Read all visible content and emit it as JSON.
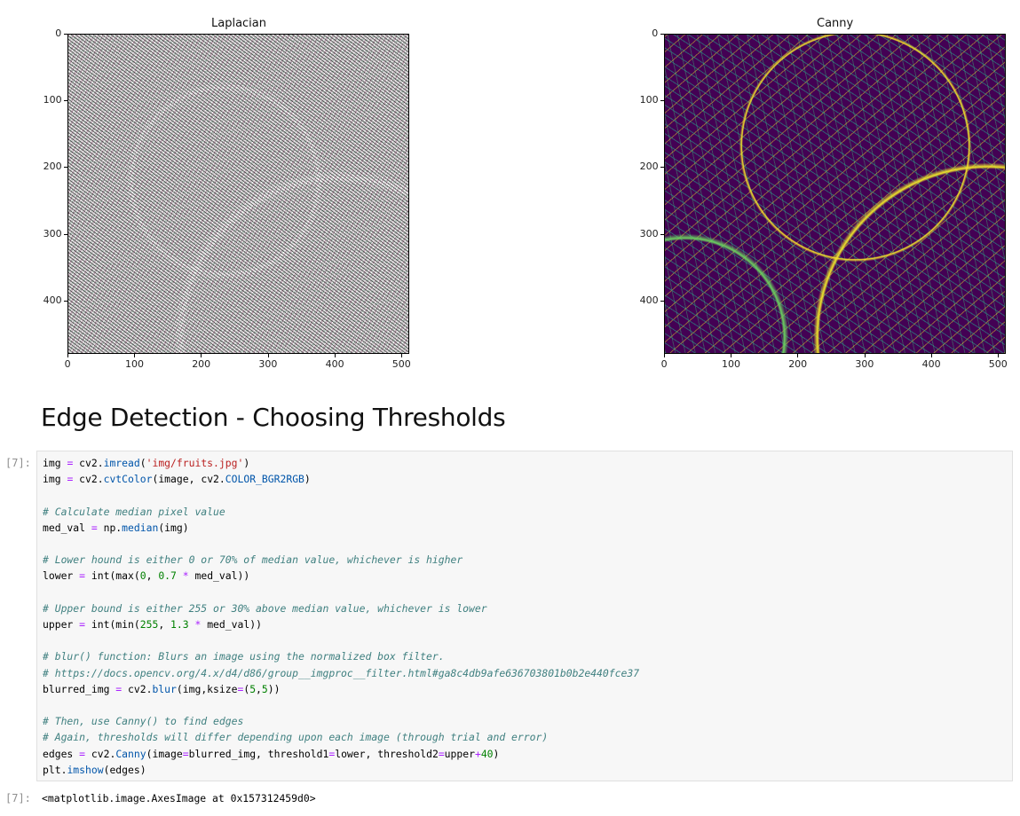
{
  "plots": [
    {
      "title": "Laplacian",
      "x_ticks": [
        "0",
        "100",
        "200",
        "300",
        "400",
        "500"
      ],
      "y_ticks": [
        "0",
        "100",
        "200",
        "300",
        "400"
      ],
      "x_range": [
        0,
        512
      ],
      "y_range": [
        0,
        480
      ],
      "image_style": "colorful noisy edge texture"
    },
    {
      "title": "Canny",
      "x_ticks": [
        "0",
        "100",
        "200",
        "300",
        "400",
        "500"
      ],
      "y_ticks": [
        "0",
        "100",
        "200",
        "300",
        "400"
      ],
      "x_range": [
        0,
        512
      ],
      "y_range": [
        0,
        480
      ],
      "image_style": "viridis edges on dark purple",
      "background_color": "#440154"
    }
  ],
  "heading": "Edge Detection - Choosing Thresholds",
  "code_cell": {
    "prompt": "[7]:",
    "lines": [
      "img = cv2.imread('img/fruits.jpg')",
      "img = cv2.cvtColor(image, cv2.COLOR_BGR2RGB)",
      "",
      "# Calculate median pixel value",
      "med_val = np.median(img)",
      "",
      "# Lower hound is either 0 or 70% of median value, whichever is higher",
      "lower = int(max(0, 0.7 * med_val))",
      "",
      "# Upper bound is either 255 or 30% above median value, whichever is lower",
      "upper = int(min(255, 1.3 * med_val))",
      "",
      "# blur() function: Blurs an image using the normalized box filter.",
      "# https://docs.opencv.org/4.x/d4/d86/group__imgproc__filter.html#ga8c4db9afe636703801b0b2e440fce37",
      "blurred_img = cv2.blur(img,ksize=(5,5))",
      "",
      "# Then, use Canny() to find edges",
      "# Again, thresholds will differ depending upon each image (through trial and error)",
      "edges = cv2.Canny(image=blurred_img, threshold1=lower, threshold2=upper+40)",
      "plt.imshow(edges)"
    ]
  },
  "output": {
    "prompt": "[7]:",
    "text": "<matplotlib.image.AxesImage at 0x157312459d0>"
  },
  "colors": {
    "code_background": "#f7f7f7",
    "comment": "#408080",
    "string": "#ba2121",
    "keyword_builtin": "#008000",
    "attribute": "#0055aa",
    "number": "#008000",
    "operator": "#aa22ff",
    "prompt": "#8f8f8f"
  }
}
